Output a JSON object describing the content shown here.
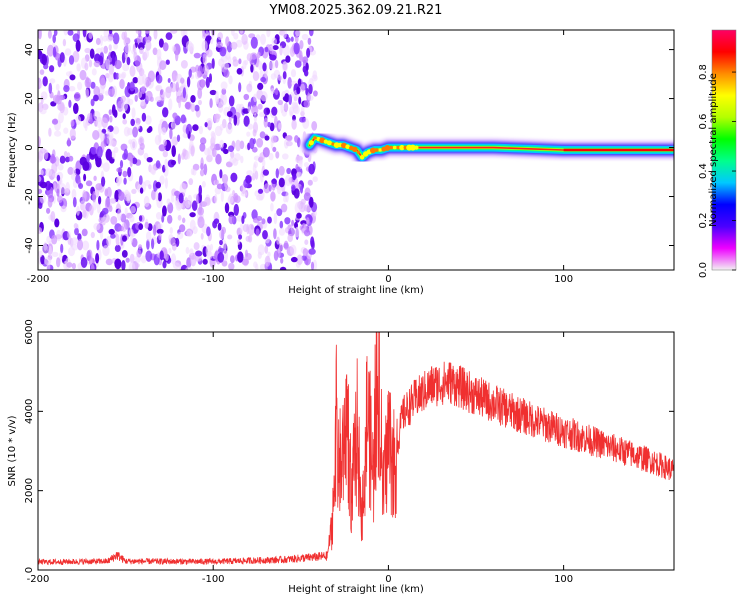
{
  "title": "YM08.2025.362.09.21.R21",
  "chart_data": [
    {
      "type": "heatmap",
      "xlabel": "Height of straight line (km)",
      "ylabel": "Frequency (Hz)",
      "xlim": [
        -200,
        163
      ],
      "ylim": [
        -50,
        48
      ],
      "x_ticks": [
        -200,
        -100,
        0,
        100
      ],
      "y_ticks": [
        -40,
        -20,
        0,
        20,
        40
      ],
      "noise_region_x": [
        -200,
        -45
      ],
      "ridge": [
        [
          -45,
          1
        ],
        [
          -42,
          4
        ],
        [
          -38,
          3
        ],
        [
          -34,
          2
        ],
        [
          -30,
          1
        ],
        [
          -26,
          1
        ],
        [
          -22,
          0
        ],
        [
          -18,
          -1
        ],
        [
          -15,
          -4
        ],
        [
          -12,
          -2
        ],
        [
          -8,
          -1
        ],
        [
          -4,
          -1
        ],
        [
          0,
          0
        ],
        [
          20,
          0
        ],
        [
          40,
          0
        ],
        [
          60,
          0
        ],
        [
          80,
          -0.5
        ],
        [
          100,
          -1
        ],
        [
          120,
          -1
        ],
        [
          140,
          -1
        ],
        [
          163,
          -1
        ]
      ],
      "colorbar": {
        "label": "Normalized spectral amplitude",
        "ticks": [
          0.0,
          0.2,
          0.4,
          0.6,
          0.8
        ],
        "range": [
          0,
          0.97
        ],
        "colors": [
          "#f2f2f2",
          "#ee00ff",
          "#4a00ff",
          "#0000ff",
          "#00c8ff",
          "#00ff8c",
          "#00ff00",
          "#b4ff00",
          "#ffff00",
          "#ff8c00",
          "#ff0000",
          "#ff0064"
        ]
      }
    },
    {
      "type": "line",
      "xlabel": "Height of straight line (km)",
      "ylabel": "SNR (10 * v/v)",
      "xlim": [
        -200,
        163
      ],
      "ylim": [
        0,
        6000
      ],
      "x_ticks": [
        -200,
        -100,
        0,
        100
      ],
      "y_ticks": [
        0,
        2000,
        4000,
        6000
      ],
      "color": "#f03030",
      "envelope": [
        [
          -200,
          200
        ],
        [
          -160,
          220
        ],
        [
          -155,
          380
        ],
        [
          -150,
          220
        ],
        [
          -100,
          210
        ],
        [
          -60,
          260
        ],
        [
          -35,
          350
        ],
        [
          -32,
          1200
        ],
        [
          -30,
          3800
        ],
        [
          -27,
          2400
        ],
        [
          -24,
          4300
        ],
        [
          -21,
          1800
        ],
        [
          -18,
          3600
        ],
        [
          -15,
          1300
        ],
        [
          -12,
          4100
        ],
        [
          -9,
          2500
        ],
        [
          -6,
          5200
        ],
        [
          -3,
          1900
        ],
        [
          0,
          3400
        ],
        [
          3,
          2600
        ],
        [
          8,
          3900
        ],
        [
          15,
          4300
        ],
        [
          25,
          4650
        ],
        [
          35,
          4750
        ],
        [
          50,
          4400
        ],
        [
          70,
          4000
        ],
        [
          90,
          3650
        ],
        [
          110,
          3350
        ],
        [
          130,
          3050
        ],
        [
          150,
          2750
        ],
        [
          163,
          2500
        ]
      ]
    }
  ]
}
